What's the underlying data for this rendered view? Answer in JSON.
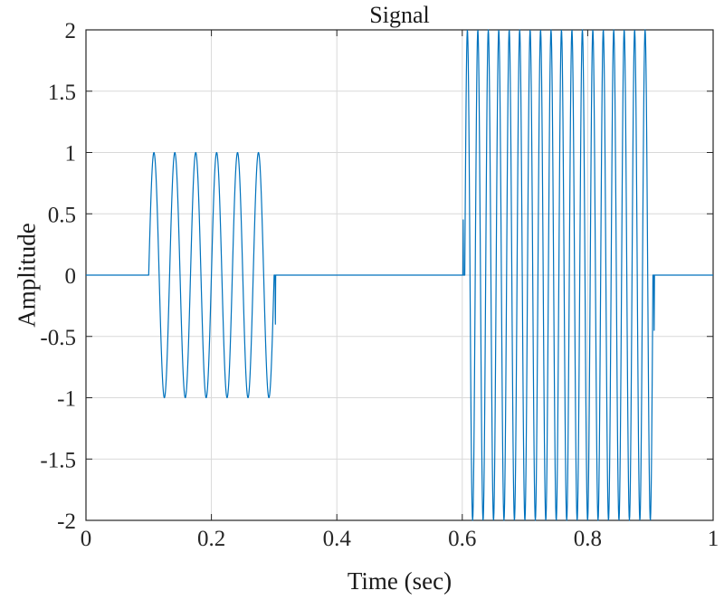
{
  "figure": {
    "background": "#ffffff"
  },
  "chart_data": {
    "type": "line",
    "title": "Signal",
    "xlabel": "Time (sec)",
    "ylabel": "Amplitude",
    "xlim": [
      0,
      1
    ],
    "ylim": [
      -2,
      2
    ],
    "xticks": [
      0,
      0.2,
      0.4,
      0.6,
      0.8,
      1
    ],
    "xtick_labels": [
      "0",
      "0.2",
      "0.4",
      "0.6",
      "0.8",
      "1"
    ],
    "yticks": [
      -2,
      -1.5,
      -1,
      -0.5,
      0,
      0.5,
      1,
      1.5,
      2
    ],
    "ytick_labels": [
      "-2",
      "-1.5",
      "-1",
      "-0.5",
      "0",
      "0.5",
      "1",
      "1.5",
      "2"
    ],
    "grid": true,
    "legend": "none",
    "line_color": "#0072BD",
    "grid_color": "#d9d9d9",
    "axis_color": "#262626",
    "signal": {
      "description": "Piecewise sinusoid: zero baseline with a 1-amplitude 30 Hz burst from 0.1-0.3 s and a 2-amplitude 60 Hz burst from ~0.6-0.9 s, plus small sampling edge spikes at the burst boundaries.",
      "sample_rate": 2000,
      "segments": [
        {
          "t_start": 0.0,
          "t_end": 0.1,
          "amplitude": 0,
          "frequency": 0
        },
        {
          "t_start": 0.1,
          "t_end": 0.3,
          "amplitude": 1,
          "frequency": 30
        },
        {
          "t_start": 0.3,
          "t_end": 0.604,
          "amplitude": 0,
          "frequency": 0
        },
        {
          "t_start": 0.604,
          "t_end": 0.904,
          "amplitude": 2,
          "frequency": 60
        },
        {
          "t_start": 0.904,
          "t_end": 1.0,
          "amplitude": 0,
          "frequency": 0
        }
      ],
      "edge_spikes": [
        {
          "t": 0.302,
          "value": -0.4
        },
        {
          "t": 0.6015,
          "value": 0.45
        },
        {
          "t": 0.906,
          "value": -0.45
        }
      ]
    }
  }
}
